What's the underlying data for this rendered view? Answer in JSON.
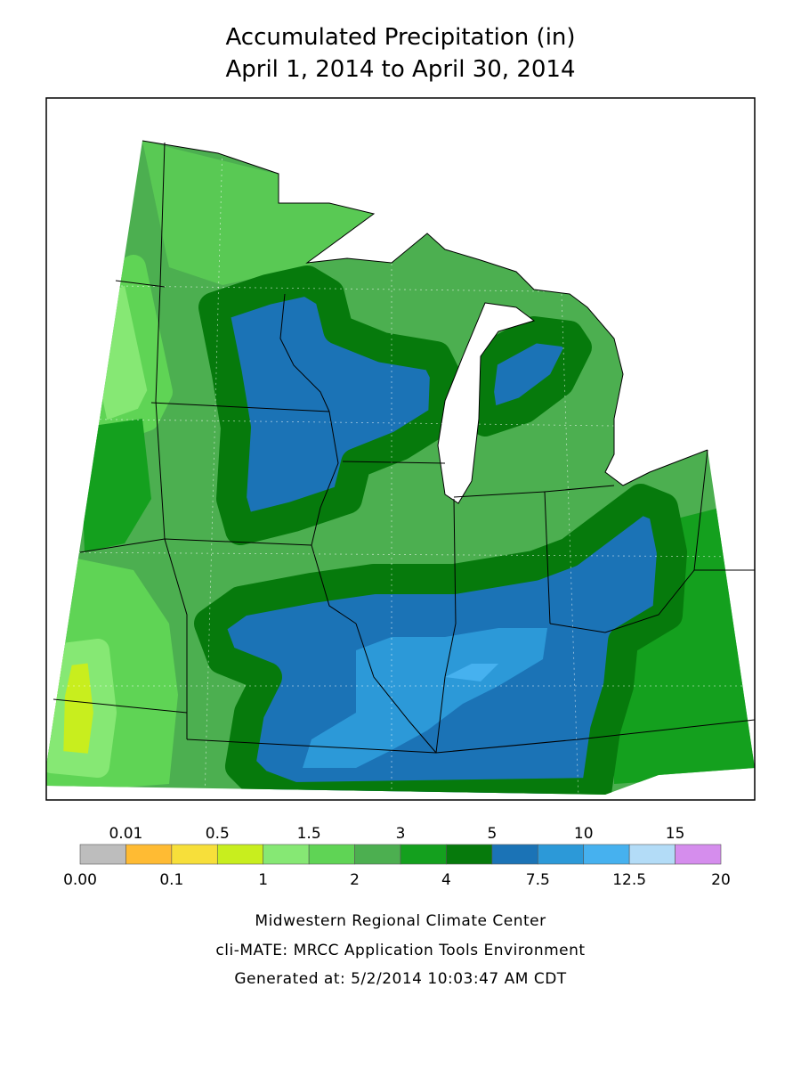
{
  "title": {
    "line1": "Accumulated Precipitation (in)",
    "line2": "April 1, 2014 to April 30, 2014"
  },
  "legend": {
    "labels": [
      "0.00",
      "0.01",
      "0.1",
      "0.5",
      "1",
      "1.5",
      "2",
      "3",
      "4",
      "5",
      "7.5",
      "10",
      "12.5",
      "15",
      "20"
    ],
    "colors": [
      "#bdbdbd",
      "#ffbb33",
      "#f7df3a",
      "#c8ee1e",
      "#86e874",
      "#5fd455",
      "#4caf50",
      "#14a01e",
      "#067a0c",
      "#1b73b6",
      "#2c99d8",
      "#46b1ef",
      "#b3dcf7",
      "#d58ded"
    ]
  },
  "footer": [
    "Midwestern Regional Climate Center",
    "cli-MATE: MRCC Application Tools Environment",
    "Generated at: 5/2/2014 10:03:47 AM CDT"
  ]
}
